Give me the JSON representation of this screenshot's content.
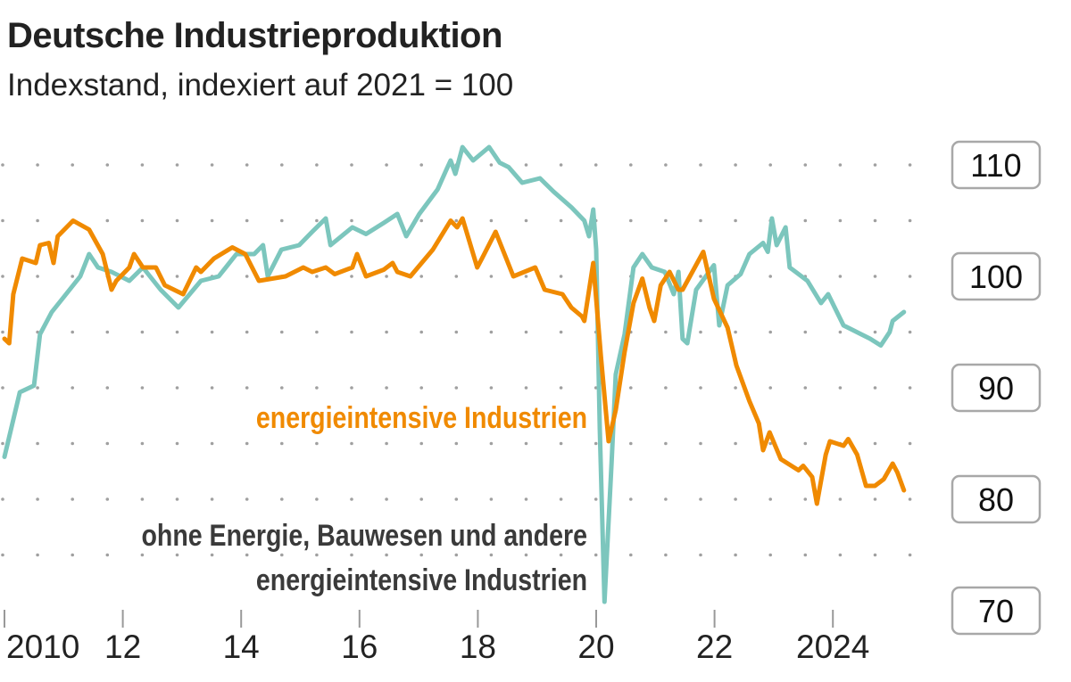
{
  "chart_data": {
    "type": "line",
    "title": "Deutsche Industrieproduktion",
    "subtitle": "Indexstand, indexiert auf 2021 = 100",
    "xlim": [
      2010,
      2025.3
    ],
    "ylim": [
      70,
      112
    ],
    "x_ticks": [
      {
        "value": 2010,
        "label": "2010"
      },
      {
        "value": 2012,
        "label": "12"
      },
      {
        "value": 2014,
        "label": "14"
      },
      {
        "value": 2016,
        "label": "16"
      },
      {
        "value": 2018,
        "label": "18"
      },
      {
        "value": 2020,
        "label": "20"
      },
      {
        "value": 2022,
        "label": "22"
      },
      {
        "value": 2024,
        "label": "2024"
      }
    ],
    "y_ticks": [
      {
        "value": 110,
        "label": "110"
      },
      {
        "value": 100,
        "label": "100"
      },
      {
        "value": 90,
        "label": "90"
      },
      {
        "value": 80,
        "label": "80"
      },
      {
        "value": 70,
        "label": "70"
      }
    ],
    "grid": "dotted, every 5 index points",
    "y_axis_position": "right",
    "series": [
      {
        "name": "ohne Energie, Bauwesen und andere energieintensive Industrien",
        "label_lines": [
          "ohne Energie, Bauwesen und andere",
          "energieintensive Industrien"
        ],
        "color": "#7cc6bd",
        "label_color": "#3a3a3a",
        "points": [
          [
            2010.0,
            83.8
          ],
          [
            2010.26,
            89.6
          ],
          [
            2010.5,
            90.2
          ],
          [
            2010.6,
            94.8
          ],
          [
            2010.8,
            96.8
          ],
          [
            2010.98,
            98.0
          ],
          [
            2011.28,
            100.0
          ],
          [
            2011.43,
            102.0
          ],
          [
            2011.58,
            100.8
          ],
          [
            2011.81,
            100.4
          ],
          [
            2012.11,
            99.6
          ],
          [
            2012.34,
            100.8
          ],
          [
            2012.64,
            98.8
          ],
          [
            2012.94,
            97.2
          ],
          [
            2013.32,
            99.6
          ],
          [
            2013.62,
            100.0
          ],
          [
            2013.92,
            102.0
          ],
          [
            2014.22,
            102.0
          ],
          [
            2014.37,
            102.8
          ],
          [
            2014.45,
            100.0
          ],
          [
            2014.68,
            102.4
          ],
          [
            2014.98,
            102.8
          ],
          [
            2015.2,
            104.0
          ],
          [
            2015.43,
            105.2
          ],
          [
            2015.51,
            102.8
          ],
          [
            2015.88,
            104.4
          ],
          [
            2016.11,
            103.8
          ],
          [
            2016.41,
            104.8
          ],
          [
            2016.64,
            105.6
          ],
          [
            2016.79,
            103.6
          ],
          [
            2017.01,
            105.6
          ],
          [
            2017.32,
            107.8
          ],
          [
            2017.47,
            109.6
          ],
          [
            2017.54,
            110.4
          ],
          [
            2017.62,
            109.2
          ],
          [
            2017.74,
            111.6
          ],
          [
            2017.92,
            110.4
          ],
          [
            2018.19,
            111.6
          ],
          [
            2018.37,
            110.2
          ],
          [
            2018.52,
            109.8
          ],
          [
            2018.75,
            108.4
          ],
          [
            2019.05,
            108.8
          ],
          [
            2019.28,
            107.6
          ],
          [
            2019.58,
            106.2
          ],
          [
            2019.8,
            105.0
          ],
          [
            2019.88,
            103.6
          ],
          [
            2019.95,
            106.0
          ],
          [
            2020.0,
            102.4
          ],
          [
            2020.06,
            86.4
          ],
          [
            2020.14,
            70.8
          ],
          [
            2020.26,
            83.2
          ],
          [
            2020.33,
            91.2
          ],
          [
            2020.48,
            94.8
          ],
          [
            2020.63,
            100.8
          ],
          [
            2020.78,
            102.0
          ],
          [
            2020.94,
            100.8
          ],
          [
            2021.16,
            100.4
          ],
          [
            2021.31,
            98.4
          ],
          [
            2021.39,
            100.4
          ],
          [
            2021.46,
            94.4
          ],
          [
            2021.54,
            94.0
          ],
          [
            2021.69,
            98.8
          ],
          [
            2021.99,
            101.0
          ],
          [
            2022.08,
            95.6
          ],
          [
            2022.22,
            99.2
          ],
          [
            2022.44,
            100.2
          ],
          [
            2022.59,
            102.0
          ],
          [
            2022.82,
            103.0
          ],
          [
            2022.9,
            102.2
          ],
          [
            2022.97,
            105.2
          ],
          [
            2023.05,
            102.8
          ],
          [
            2023.2,
            104.4
          ],
          [
            2023.27,
            100.8
          ],
          [
            2023.57,
            99.6
          ],
          [
            2023.8,
            97.6
          ],
          [
            2023.92,
            98.4
          ],
          [
            2024.18,
            95.6
          ],
          [
            2024.33,
            95.2
          ],
          [
            2024.48,
            94.8
          ],
          [
            2024.63,
            94.4
          ],
          [
            2024.81,
            93.8
          ],
          [
            2024.96,
            95.0
          ],
          [
            2025.01,
            96.0
          ],
          [
            2025.2,
            96.8
          ]
        ]
      },
      {
        "name": "energieintensive Industrien",
        "label_lines": [
          "energieintensive Industrien"
        ],
        "color": "#f08a00",
        "label_color": "#f08a00",
        "points": [
          [
            2010.0,
            94.4
          ],
          [
            2010.08,
            94.0
          ],
          [
            2010.15,
            98.4
          ],
          [
            2010.3,
            101.6
          ],
          [
            2010.53,
            101.2
          ],
          [
            2010.6,
            102.8
          ],
          [
            2010.75,
            103.0
          ],
          [
            2010.83,
            101.2
          ],
          [
            2010.9,
            103.6
          ],
          [
            2011.16,
            105.0
          ],
          [
            2011.43,
            104.2
          ],
          [
            2011.66,
            102.0
          ],
          [
            2011.81,
            98.8
          ],
          [
            2011.89,
            99.6
          ],
          [
            2012.11,
            100.8
          ],
          [
            2012.19,
            102.0
          ],
          [
            2012.34,
            100.8
          ],
          [
            2012.56,
            100.8
          ],
          [
            2012.71,
            99.2
          ],
          [
            2013.02,
            98.4
          ],
          [
            2013.24,
            100.8
          ],
          [
            2013.32,
            100.4
          ],
          [
            2013.54,
            101.6
          ],
          [
            2013.85,
            102.6
          ],
          [
            2014.07,
            102.0
          ],
          [
            2014.3,
            99.6
          ],
          [
            2014.75,
            100.0
          ],
          [
            2015.05,
            100.8
          ],
          [
            2015.2,
            100.4
          ],
          [
            2015.43,
            100.8
          ],
          [
            2015.58,
            100.2
          ],
          [
            2015.88,
            100.8
          ],
          [
            2015.96,
            102.0
          ],
          [
            2016.11,
            100.0
          ],
          [
            2016.41,
            100.6
          ],
          [
            2016.56,
            101.2
          ],
          [
            2016.64,
            100.4
          ],
          [
            2016.86,
            100.0
          ],
          [
            2017.24,
            102.4
          ],
          [
            2017.54,
            105.0
          ],
          [
            2017.65,
            104.4
          ],
          [
            2017.74,
            105.2
          ],
          [
            2017.99,
            100.8
          ],
          [
            2018.07,
            101.6
          ],
          [
            2018.3,
            104.0
          ],
          [
            2018.6,
            100.0
          ],
          [
            2018.97,
            100.8
          ],
          [
            2019.13,
            98.8
          ],
          [
            2019.43,
            98.4
          ],
          [
            2019.58,
            97.2
          ],
          [
            2019.76,
            96.4
          ],
          [
            2019.8,
            96.0
          ],
          [
            2019.95,
            101.2
          ],
          [
            2020.08,
            92.8
          ],
          [
            2020.21,
            85.2
          ],
          [
            2020.33,
            88.0
          ],
          [
            2020.48,
            93.2
          ],
          [
            2020.63,
            97.6
          ],
          [
            2020.78,
            99.8
          ],
          [
            2020.9,
            97.2
          ],
          [
            2020.98,
            96.0
          ],
          [
            2021.09,
            99.2
          ],
          [
            2021.24,
            100.4
          ],
          [
            2021.39,
            98.8
          ],
          [
            2021.46,
            98.8
          ],
          [
            2021.81,
            102.2
          ],
          [
            2021.99,
            98.0
          ],
          [
            2022.22,
            95.4
          ],
          [
            2022.37,
            92.0
          ],
          [
            2022.59,
            88.8
          ],
          [
            2022.75,
            86.8
          ],
          [
            2022.82,
            84.4
          ],
          [
            2022.93,
            86.0
          ],
          [
            2023.12,
            83.6
          ],
          [
            2023.42,
            82.6
          ],
          [
            2023.5,
            83.0
          ],
          [
            2023.65,
            82.0
          ],
          [
            2023.73,
            79.6
          ],
          [
            2023.88,
            84.0
          ],
          [
            2023.95,
            85.2
          ],
          [
            2024.18,
            84.8
          ],
          [
            2024.26,
            85.4
          ],
          [
            2024.41,
            84.0
          ],
          [
            2024.56,
            81.2
          ],
          [
            2024.71,
            81.2
          ],
          [
            2024.86,
            81.8
          ],
          [
            2025.01,
            83.2
          ],
          [
            2025.09,
            82.4
          ],
          [
            2025.2,
            80.8
          ]
        ]
      }
    ]
  }
}
